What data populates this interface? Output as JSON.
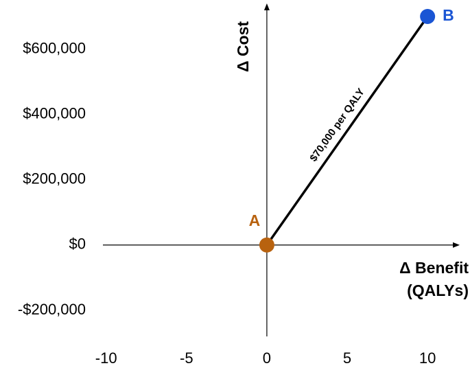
{
  "chart_data": {
    "type": "scatter",
    "xlabel": [
      "Δ Benefit",
      "(QALYs)"
    ],
    "ylabel": "Δ Cost",
    "annotation": "$70,000 per QALY",
    "series": [
      {
        "name": "A",
        "color": "#b8620f",
        "x": [
          0
        ],
        "values": [
          0
        ]
      },
      {
        "name": "B",
        "color": "#1a55d4",
        "x": [
          10
        ],
        "values": [
          700000
        ]
      }
    ],
    "connect": true,
    "xlim": [
      -10.2,
      12
    ],
    "ylim": [
      -280000,
      740000
    ],
    "xticks": [
      -10,
      -5,
      0,
      5,
      10
    ],
    "yticks": [
      {
        "value": -200000,
        "label": "-$200,000"
      },
      {
        "value": 0,
        "label": "$0"
      },
      {
        "value": 200000,
        "label": "$200,000"
      },
      {
        "value": 400000,
        "label": "$400,000"
      },
      {
        "value": 600000,
        "label": "$600,000"
      }
    ]
  }
}
